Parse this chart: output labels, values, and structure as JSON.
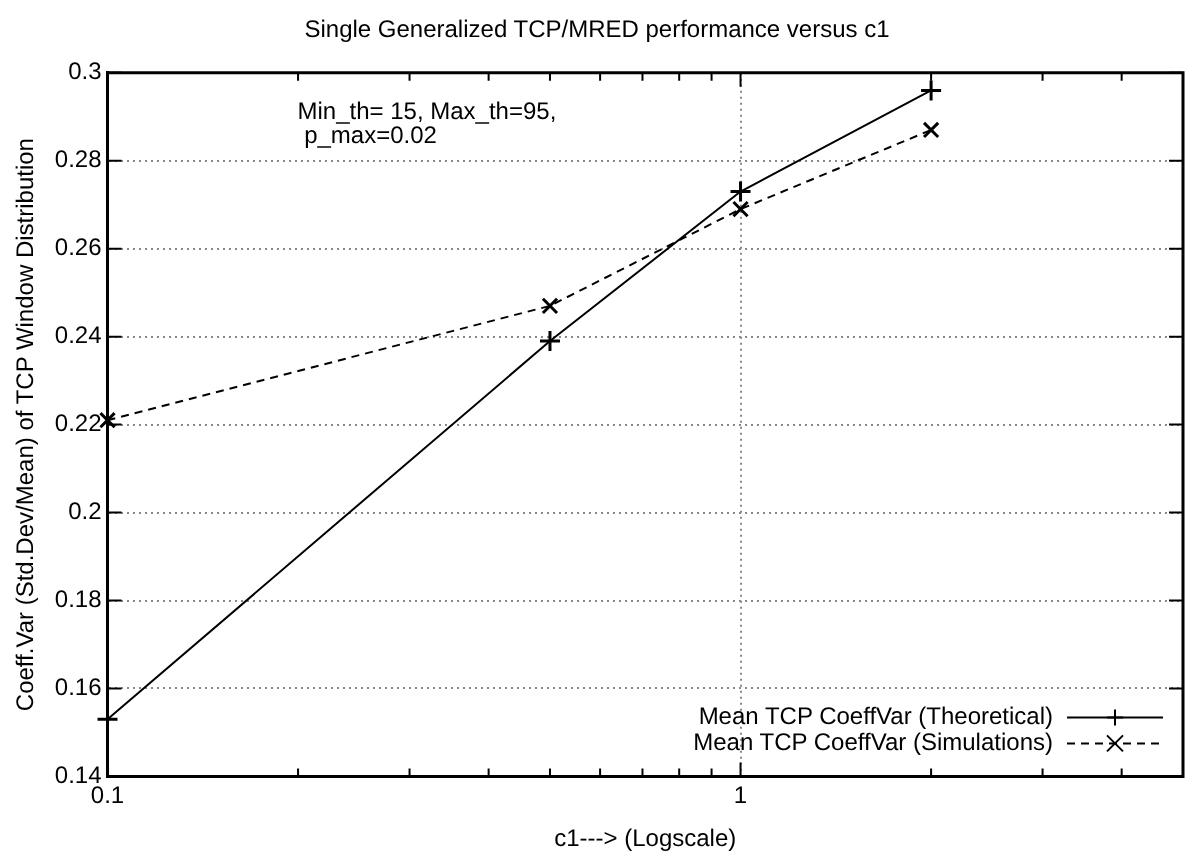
{
  "chart_data": {
    "type": "line",
    "title": "Single Generalized TCP/MRED performance versus c1",
    "xlabel": "c1---> (Logscale)",
    "ylabel": "Coeff.Var (Std.Dev/Mean) of TCP Window Distribution",
    "annotations": [
      "Min_th= 15, Max_th=95,",
      " p_max=0.02"
    ],
    "x": [
      0.1,
      0.5,
      1,
      2
    ],
    "series": [
      {
        "name": "Mean TCP CoeffVar (Theoretical)",
        "color": "#000000",
        "values": [
          0.153,
          0.239,
          0.273,
          0.296
        ],
        "marker": "cross",
        "line_style": "solid"
      },
      {
        "name": "Mean TCP CoeffVar (Simulations)",
        "color": "#000000",
        "values": [
          0.221,
          0.247,
          0.269,
          0.287
        ],
        "marker": "x",
        "line_style": "dashed"
      }
    ],
    "log": "x",
    "xlim": [
      0.1,
      5
    ],
    "xticks": [
      0.1,
      {
        "value": 0.2,
        "label": null
      },
      {
        "value": 0.3,
        "label": null
      },
      {
        "value": 0.4,
        "label": null
      },
      {
        "value": 0.5,
        "label": null
      },
      {
        "value": 0.6,
        "label": null
      },
      {
        "value": 0.7,
        "label": null
      },
      {
        "value": 0.8,
        "label": null
      },
      {
        "value": 0.9,
        "label": null
      },
      1,
      {
        "value": 2,
        "label": null
      },
      {
        "value": 3,
        "label": null
      },
      {
        "value": 4,
        "label": null
      },
      {
        "value": 5,
        "label": null
      }
    ],
    "ylim": [
      0.14,
      0.3
    ],
    "yticks": [
      0.14,
      0.16,
      0.18,
      0.2,
      0.22,
      0.24,
      0.26,
      0.28,
      0.3
    ],
    "grid": true,
    "legend": "bottom right"
  }
}
